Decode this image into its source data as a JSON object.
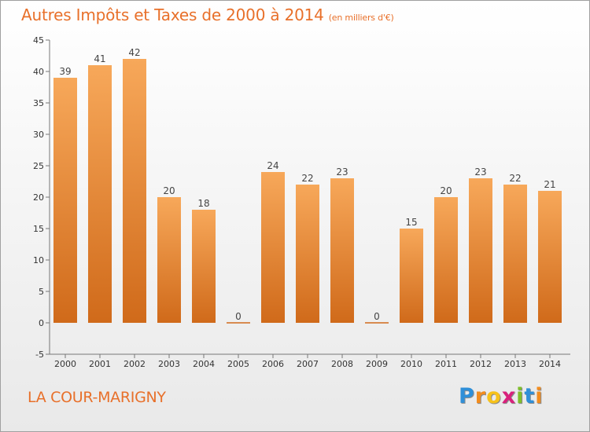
{
  "chart_data": {
    "type": "bar",
    "title": "Autres Impôts et Taxes de 2000 à 2014",
    "subtitle": "(en milliers d'€)",
    "categories": [
      "2000",
      "2001",
      "2002",
      "2003",
      "2004",
      "2005",
      "2006",
      "2007",
      "2008",
      "2009",
      "2010",
      "2011",
      "2012",
      "2013",
      "2014"
    ],
    "values": [
      39,
      41,
      42,
      20,
      18,
      0,
      24,
      22,
      23,
      0,
      15,
      20,
      23,
      22,
      21
    ],
    "value_labels": [
      "39",
      "41",
      "42",
      "20",
      "18",
      "0",
      "24",
      "22",
      "23",
      "0",
      "15",
      "20",
      "23",
      "22",
      "21"
    ],
    "ylim": [
      -5,
      45
    ],
    "yticks": [
      "-5",
      "0",
      "5",
      "10",
      "15",
      "20",
      "25",
      "30",
      "35",
      "40",
      "45"
    ],
    "xlabel": "",
    "ylabel": "",
    "grid": false,
    "legend": "none",
    "bar_color_top": "#f7a85a",
    "bar_color_bottom": "#d06a1a"
  },
  "commune": "LA COUR-MARIGNY",
  "logo": {
    "letters": [
      "P",
      "r",
      "o",
      "x",
      "i",
      "t",
      "i"
    ],
    "colors": [
      "#2f8fd8",
      "#f28c1e",
      "#f7c21a",
      "#d9217c",
      "#7fbf2a",
      "#2f8fd8",
      "#f28c1e"
    ]
  }
}
